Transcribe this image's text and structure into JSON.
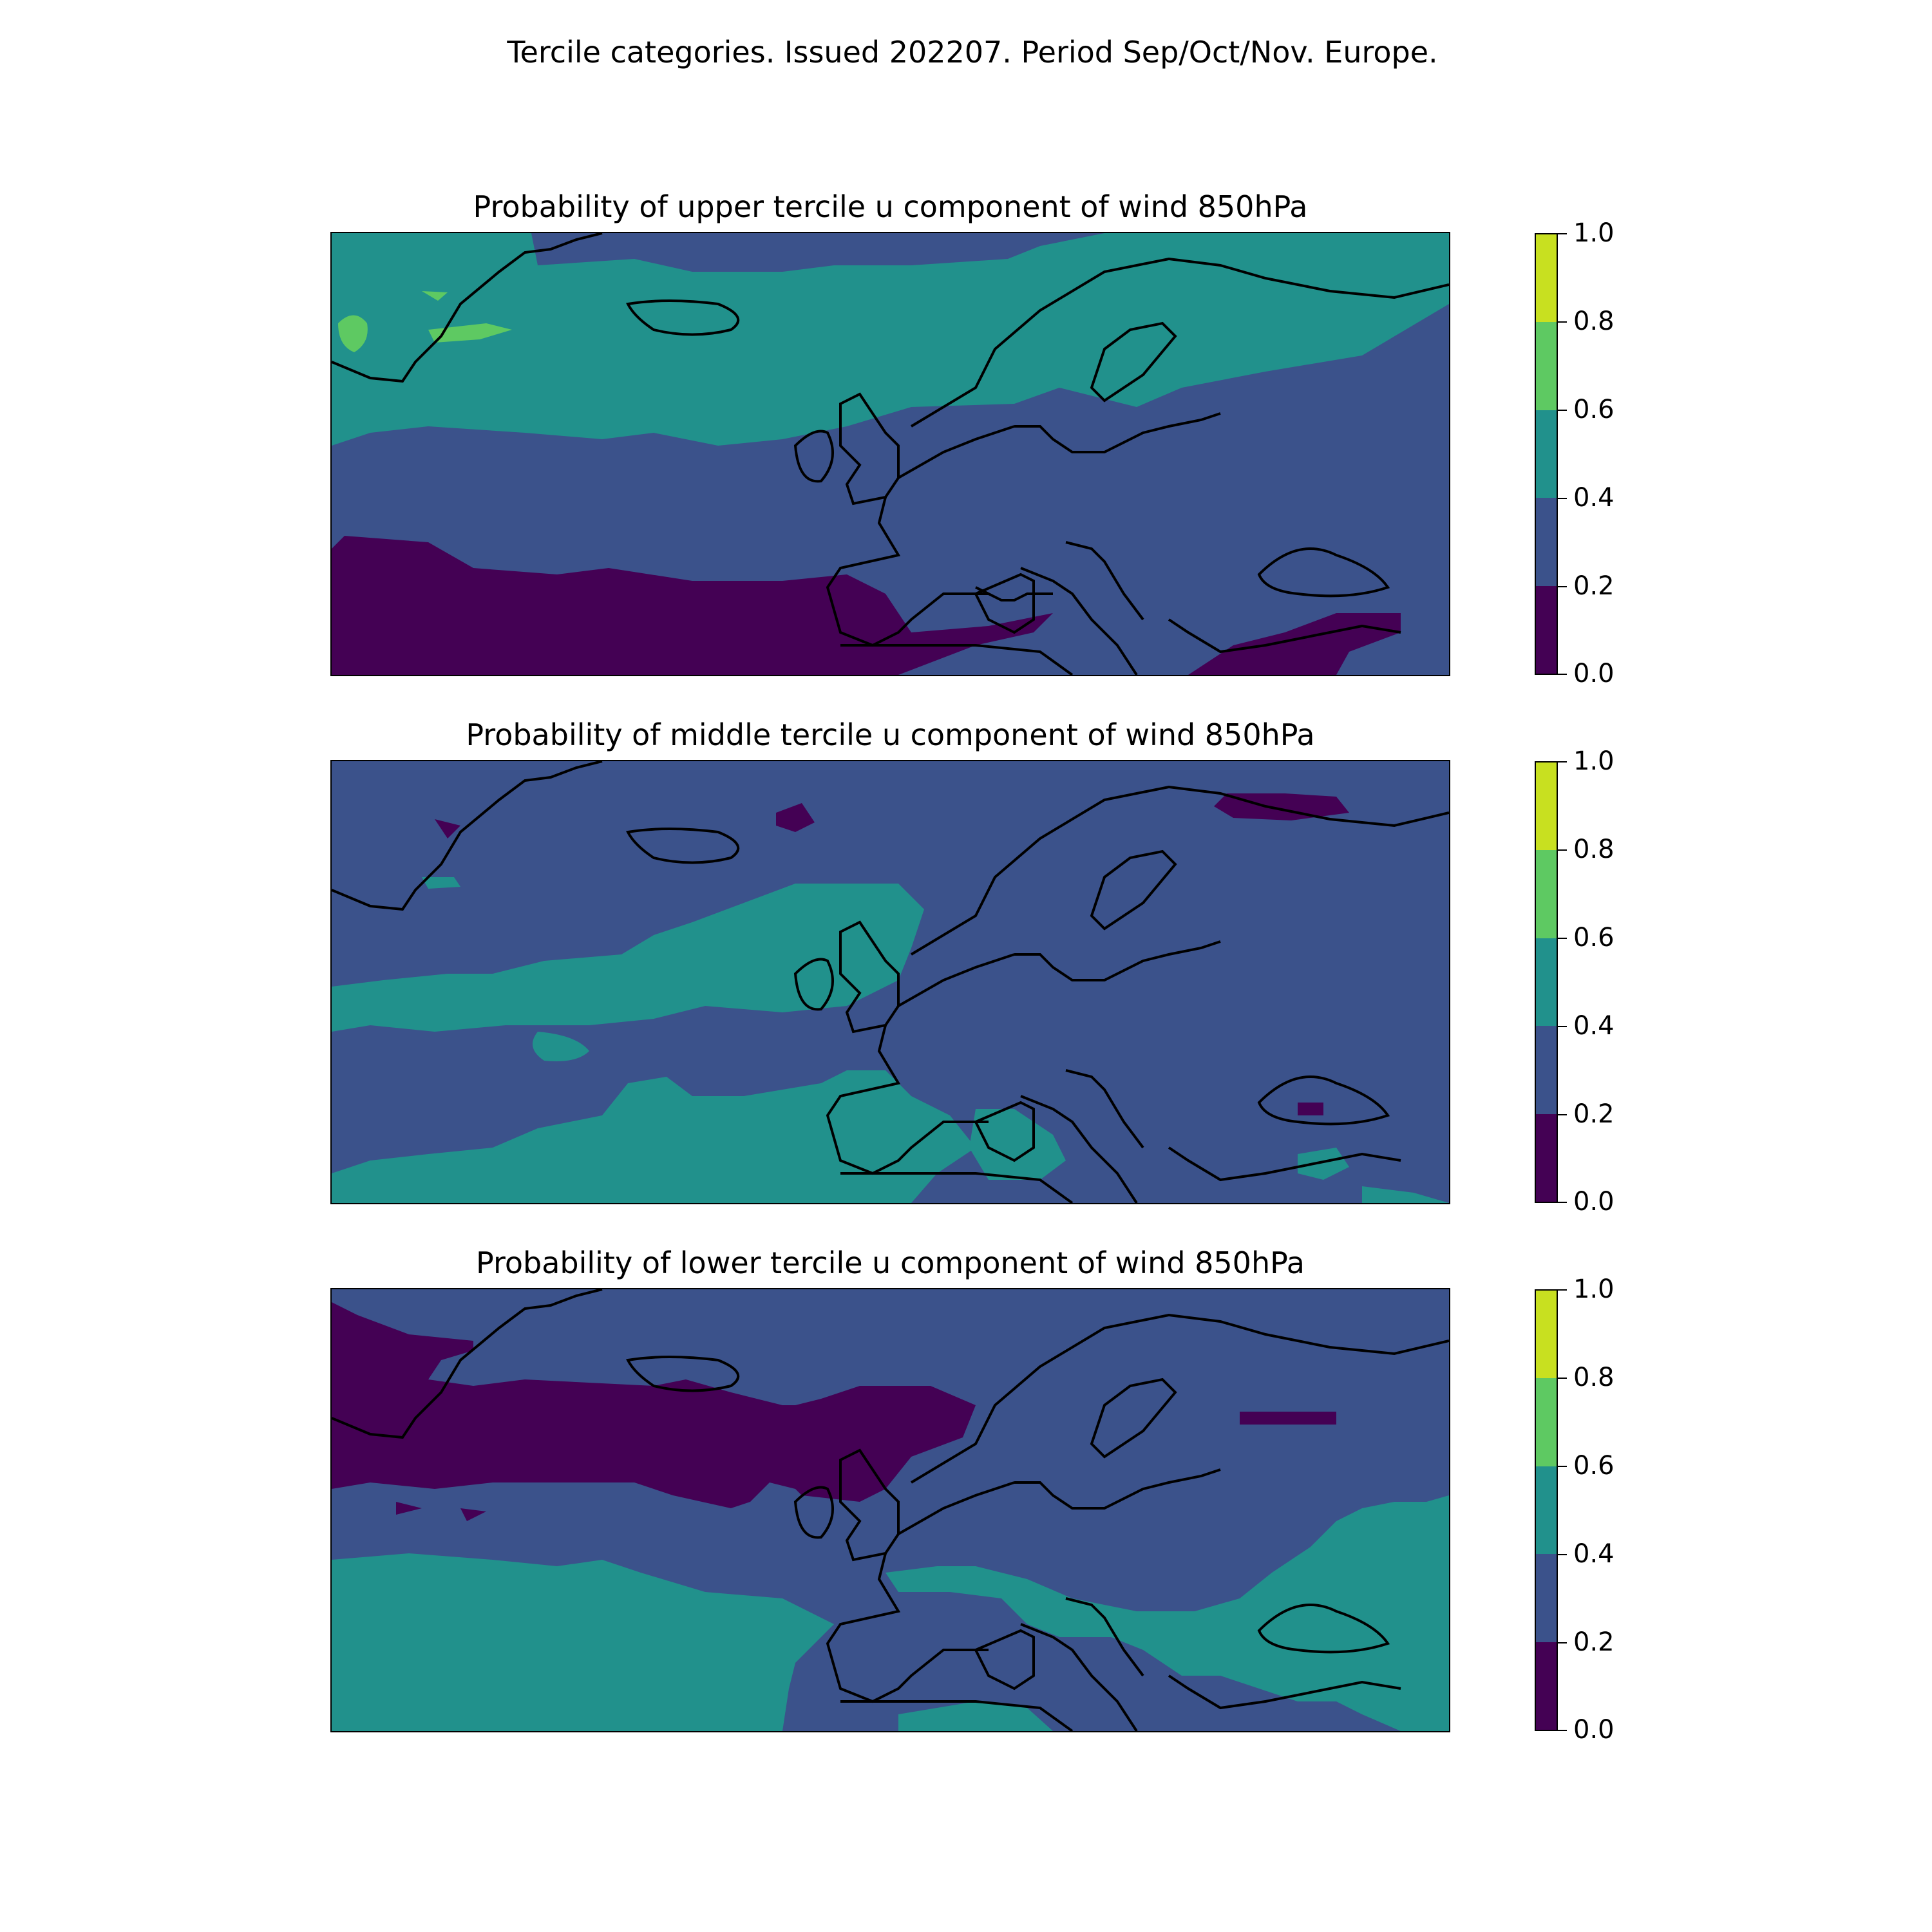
{
  "suptitle": "Tercile categories. Issued 202207. Period Sep/Oct/Nov. Europe.",
  "colors": {
    "levels": [
      "#440154",
      "#3b528b",
      "#21918c",
      "#5ec962",
      "#c8e020"
    ],
    "land_outline": "#000000"
  },
  "colorbar": {
    "ticks": [
      "1.0",
      "0.8",
      "0.6",
      "0.4",
      "0.2",
      "0.0"
    ],
    "bins": [
      "0.0-0.2",
      "0.2-0.4",
      "0.4-0.6",
      "0.6-0.8",
      "0.8-1.0"
    ]
  },
  "panels": [
    {
      "id": "upper",
      "title": "Probability of upper tercile u component of wind 850hPa",
      "dominant_bins": [
        "0.2-0.4",
        "0.4-0.6",
        "0.0-0.2"
      ],
      "pattern": "0.4-0.6 across north Atlantic and Scandinavia; 0.0-0.2 over subtropical Atlantic, Iberia and eastern Mediterranean; 0.6-0.8 patches near Greenland"
    },
    {
      "id": "middle",
      "title": "Probability of middle tercile u component of wind 850hPa",
      "dominant_bins": [
        "0.2-0.4",
        "0.4-0.6",
        "0.0-0.2"
      ],
      "pattern": "0.4-0.6 bands over British Isles, mid-Atlantic, Iberia and western Mediterranean; small 0.0-0.2 patches in far north and Black Sea"
    },
    {
      "id": "lower",
      "title": "Probability of lower tercile u component of wind 850hPa",
      "dominant_bins": [
        "0.2-0.4",
        "0.0-0.2",
        "0.4-0.6"
      ],
      "pattern": "0.0-0.2 band from Greenland across north Atlantic to Scotland; 0.4-0.6 over subtropical Atlantic, eastern Europe, Black Sea and Turkey"
    }
  ]
}
